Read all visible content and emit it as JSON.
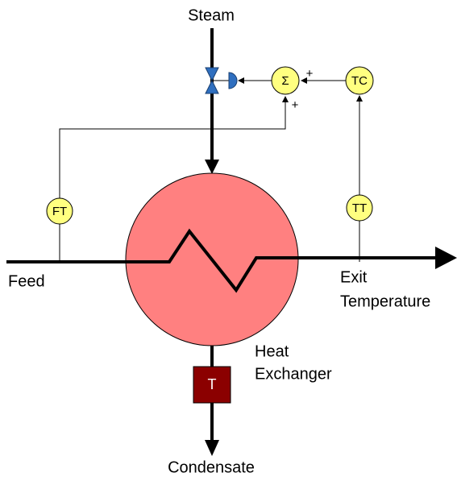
{
  "labels": {
    "steam": "Steam",
    "feed": "Feed",
    "exit": [
      "Exit",
      "Temperature"
    ],
    "exchanger": [
      "Heat",
      "Exchanger"
    ],
    "condensate": "Condensate"
  },
  "nodes": {
    "ft": "FT",
    "tt": "TT",
    "tc": "TC",
    "sum": "Σ",
    "trap": "T",
    "plus_top": "+",
    "plus_bottom": "+"
  }
}
